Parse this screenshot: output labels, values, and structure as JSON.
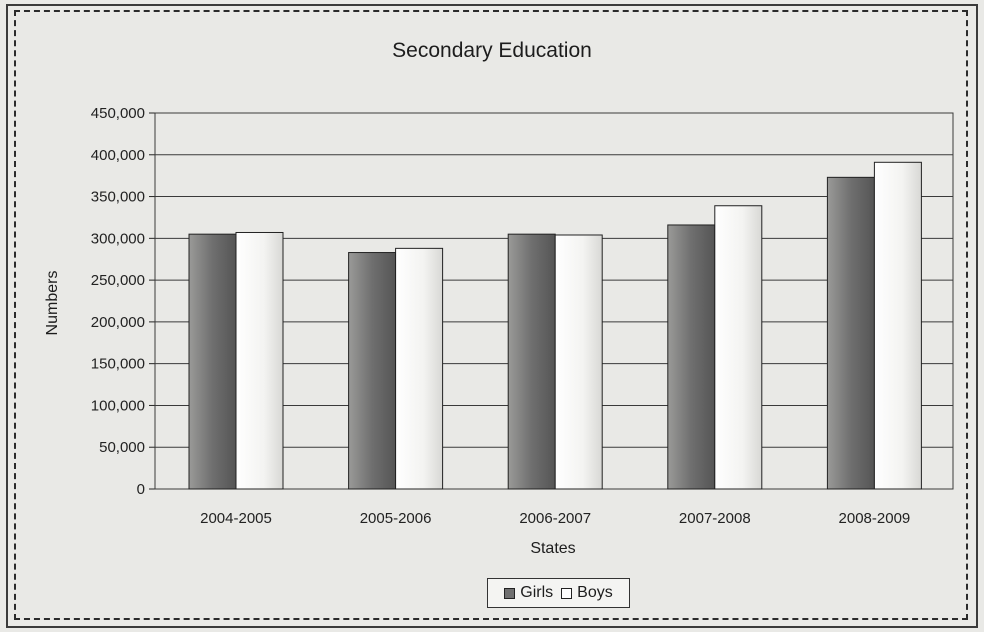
{
  "chart_data": {
    "type": "bar",
    "title": "Secondary Education",
    "xlabel": "States",
    "ylabel": "Numbers",
    "categories": [
      "2004-2005",
      "2005-2006",
      "2006-2007",
      "2007-2008",
      "2008-2009"
    ],
    "series": [
      {
        "name": "Girls",
        "color": "#6f6f6f",
        "values": [
          305000,
          283000,
          305000,
          316000,
          373000
        ]
      },
      {
        "name": "Boys",
        "color": "#f3f3f1",
        "values": [
          307000,
          288000,
          304000,
          339000,
          391000
        ]
      }
    ],
    "ylim": [
      0,
      450000
    ],
    "yticks": [
      "0",
      "50,000",
      "100,000",
      "150,000",
      "200,000",
      "250,000",
      "300,000",
      "350,000",
      "400,000",
      "450,000"
    ],
    "grid": true,
    "legend_position": "bottom"
  }
}
